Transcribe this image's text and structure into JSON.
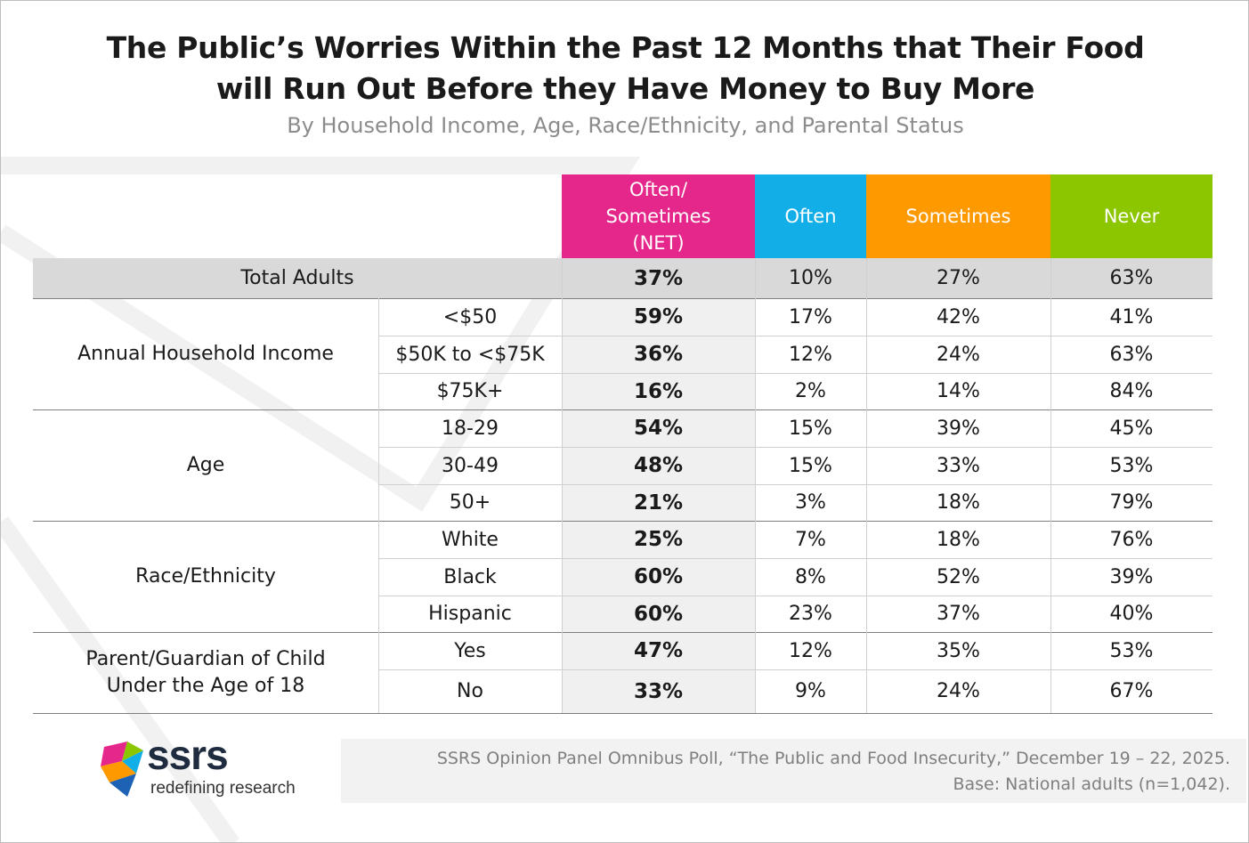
{
  "title_line1": "The Public’s Worries Within the Past 12 Months that Their Food",
  "title_line2": "will Run Out Before they Have Money to Buy More",
  "subtitle": "By Household Income, Age, Race/Ethnicity, and Parental Status",
  "colors": {
    "net": "#e5268b",
    "often": "#12aee8",
    "sometimes": "#ff9900",
    "never": "#8cc600",
    "total_row_bg": "#d9d9d9",
    "net_col_bg": "#f0f0f0"
  },
  "chart_data": {
    "type": "table",
    "columns": [
      "Often/ Sometimes (NET)",
      "Often",
      "Sometimes",
      "Never"
    ],
    "header": {
      "net_line1": "Often/",
      "net_line2": "Sometimes",
      "net_line3": "(NET)",
      "often": "Often",
      "sometimes": "Sometimes",
      "never": "Never"
    },
    "total": {
      "label": "Total Adults",
      "net": "37%",
      "often": "10%",
      "sometimes": "27%",
      "never": "63%"
    },
    "groups": [
      {
        "label": "Annual Household Income",
        "rows": [
          {
            "label": "<$50",
            "net": "59%",
            "often": "17%",
            "sometimes": "42%",
            "never": "41%"
          },
          {
            "label": "$50K to <$75K",
            "net": "36%",
            "often": "12%",
            "sometimes": "24%",
            "never": "63%"
          },
          {
            "label": "$75K+",
            "net": "16%",
            "often": "2%",
            "sometimes": "14%",
            "never": "84%"
          }
        ]
      },
      {
        "label": "Age",
        "rows": [
          {
            "label": "18-29",
            "net": "54%",
            "often": "15%",
            "sometimes": "39%",
            "never": "45%"
          },
          {
            "label": "30-49",
            "net": "48%",
            "often": "15%",
            "sometimes": "33%",
            "never": "53%"
          },
          {
            "label": "50+",
            "net": "21%",
            "often": "3%",
            "sometimes": "18%",
            "never": "79%"
          }
        ]
      },
      {
        "label": "Race/Ethnicity",
        "rows": [
          {
            "label": "White",
            "net": "25%",
            "often": "7%",
            "sometimes": "18%",
            "never": "76%"
          },
          {
            "label": "Black",
            "net": "60%",
            "often": "8%",
            "sometimes": "52%",
            "never": "39%"
          },
          {
            "label": "Hispanic",
            "net": "60%",
            "often": "23%",
            "sometimes": "37%",
            "never": "40%"
          }
        ]
      },
      {
        "label_line1": "Parent/Guardian of Child",
        "label_line2": "Under the Age of 18",
        "rows": [
          {
            "label": "Yes",
            "net": "47%",
            "often": "12%",
            "sometimes": "35%",
            "never": "53%"
          },
          {
            "label": "No",
            "net": "33%",
            "often": "9%",
            "sometimes": "24%",
            "never": "67%"
          }
        ]
      }
    ]
  },
  "footer": {
    "line1": "SSRS Opinion Panel Omnibus Poll, “The Public and Food Insecurity,” December 19 – 22, 2025.",
    "line2": "Base: National adults (n=1,042)."
  },
  "logo": {
    "word": "ssrs",
    "tagline": "redefining research",
    "icon": "ssrs-logo-icon"
  }
}
